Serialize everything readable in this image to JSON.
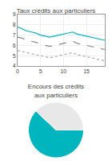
{
  "chart_data": [
    {
      "type": "line",
      "title": "Taux crédits aux particuliers",
      "x": [
        0,
        1,
        2,
        3,
        4,
        5,
        6,
        7,
        8,
        9,
        10,
        11,
        12,
        13,
        14,
        15,
        16,
        17,
        18,
        19
      ],
      "series": [
        {
          "color": "#00b5be",
          "line_style": "solid",
          "values": [
            7.8,
            7.6,
            7.4,
            7.3,
            7.2,
            7.0,
            6.9,
            6.8,
            6.9,
            7.0,
            7.1,
            7.2,
            7.3,
            7.1,
            7.0,
            6.9,
            6.8,
            6.7,
            6.6,
            6.5
          ]
        },
        {
          "color": "#888888",
          "line_style": "dashed",
          "values": [
            6.8,
            6.7,
            6.5,
            6.4,
            6.3,
            6.1,
            6.0,
            5.9,
            6.0,
            6.1,
            6.2,
            6.3,
            6.4,
            6.2,
            6.1,
            6.0,
            5.9,
            5.8,
            5.7,
            5.6
          ]
        },
        {
          "color": "#aaaaaa",
          "line_style": "dotted",
          "values": [
            5.5,
            5.4,
            5.3,
            5.2,
            5.1,
            5.0,
            4.9,
            4.8,
            4.9,
            5.0,
            5.1,
            5.2,
            5.3,
            5.1,
            5.0,
            4.9,
            4.8,
            4.7,
            4.6,
            4.5
          ]
        }
      ],
      "xlim": [
        0,
        19
      ],
      "xticks": [
        0,
        5,
        10,
        15
      ],
      "ylim": [
        4,
        9
      ],
      "yticks": [
        4,
        5,
        6,
        7,
        8,
        9
      ],
      "grid": true
    },
    {
      "type": "pie",
      "title": "Encours des crédits\naux particuliers",
      "values": [
        62,
        38
      ],
      "colors": [
        "#00b5be",
        "#e8e8e8"
      ]
    }
  ]
}
